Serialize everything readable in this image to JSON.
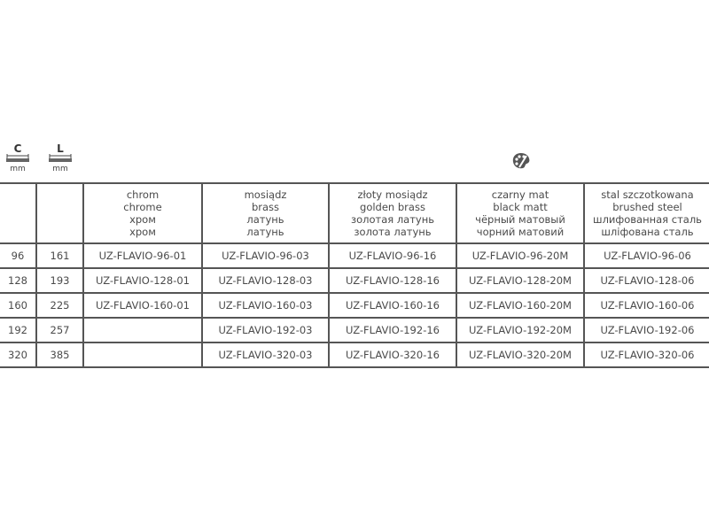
{
  "dimensions": [
    {
      "letter": "C",
      "unit": "mm"
    },
    {
      "letter": "L",
      "unit": "mm"
    }
  ],
  "palette_icon": "palette-icon",
  "finishes": [
    {
      "pl": "chrom",
      "en": "chrome",
      "ru": "хром",
      "ua": "хром"
    },
    {
      "pl": "mosiądz",
      "en": "brass",
      "ru": "латунь",
      "ua": "латунь"
    },
    {
      "pl": "złoty mosiądz",
      "en": "golden brass",
      "ru": "золотая латунь",
      "ua": "золота латунь"
    },
    {
      "pl": "czarny mat",
      "en": "black matt",
      "ru": "чёрный матовый",
      "ua": "чорний матовий"
    },
    {
      "pl": "stal szczotkowana",
      "en": "brushed steel",
      "ru": "шлифованная сталь",
      "ua": "шліфована сталь"
    }
  ],
  "rows": [
    {
      "c": "96",
      "l": "161",
      "codes": [
        "UZ-FLAVIO-96-01",
        "UZ-FLAVIO-96-03",
        "UZ-FLAVIO-96-16",
        "UZ-FLAVIO-96-20M",
        "UZ-FLAVIO-96-06"
      ]
    },
    {
      "c": "128",
      "l": "193",
      "codes": [
        "UZ-FLAVIO-128-01",
        "UZ-FLAVIO-128-03",
        "UZ-FLAVIO-128-16",
        "UZ-FLAVIO-128-20M",
        "UZ-FLAVIO-128-06"
      ]
    },
    {
      "c": "160",
      "l": "225",
      "codes": [
        "UZ-FLAVIO-160-01",
        "UZ-FLAVIO-160-03",
        "UZ-FLAVIO-160-16",
        "UZ-FLAVIO-160-20M",
        "UZ-FLAVIO-160-06"
      ]
    },
    {
      "c": "192",
      "l": "257",
      "codes": [
        "",
        "UZ-FLAVIO-192-03",
        "UZ-FLAVIO-192-16",
        "UZ-FLAVIO-192-20M",
        "UZ-FLAVIO-192-06"
      ]
    },
    {
      "c": "320",
      "l": "385",
      "codes": [
        "",
        "UZ-FLAVIO-320-03",
        "UZ-FLAVIO-320-16",
        "UZ-FLAVIO-320-20M",
        "UZ-FLAVIO-320-06"
      ]
    }
  ]
}
